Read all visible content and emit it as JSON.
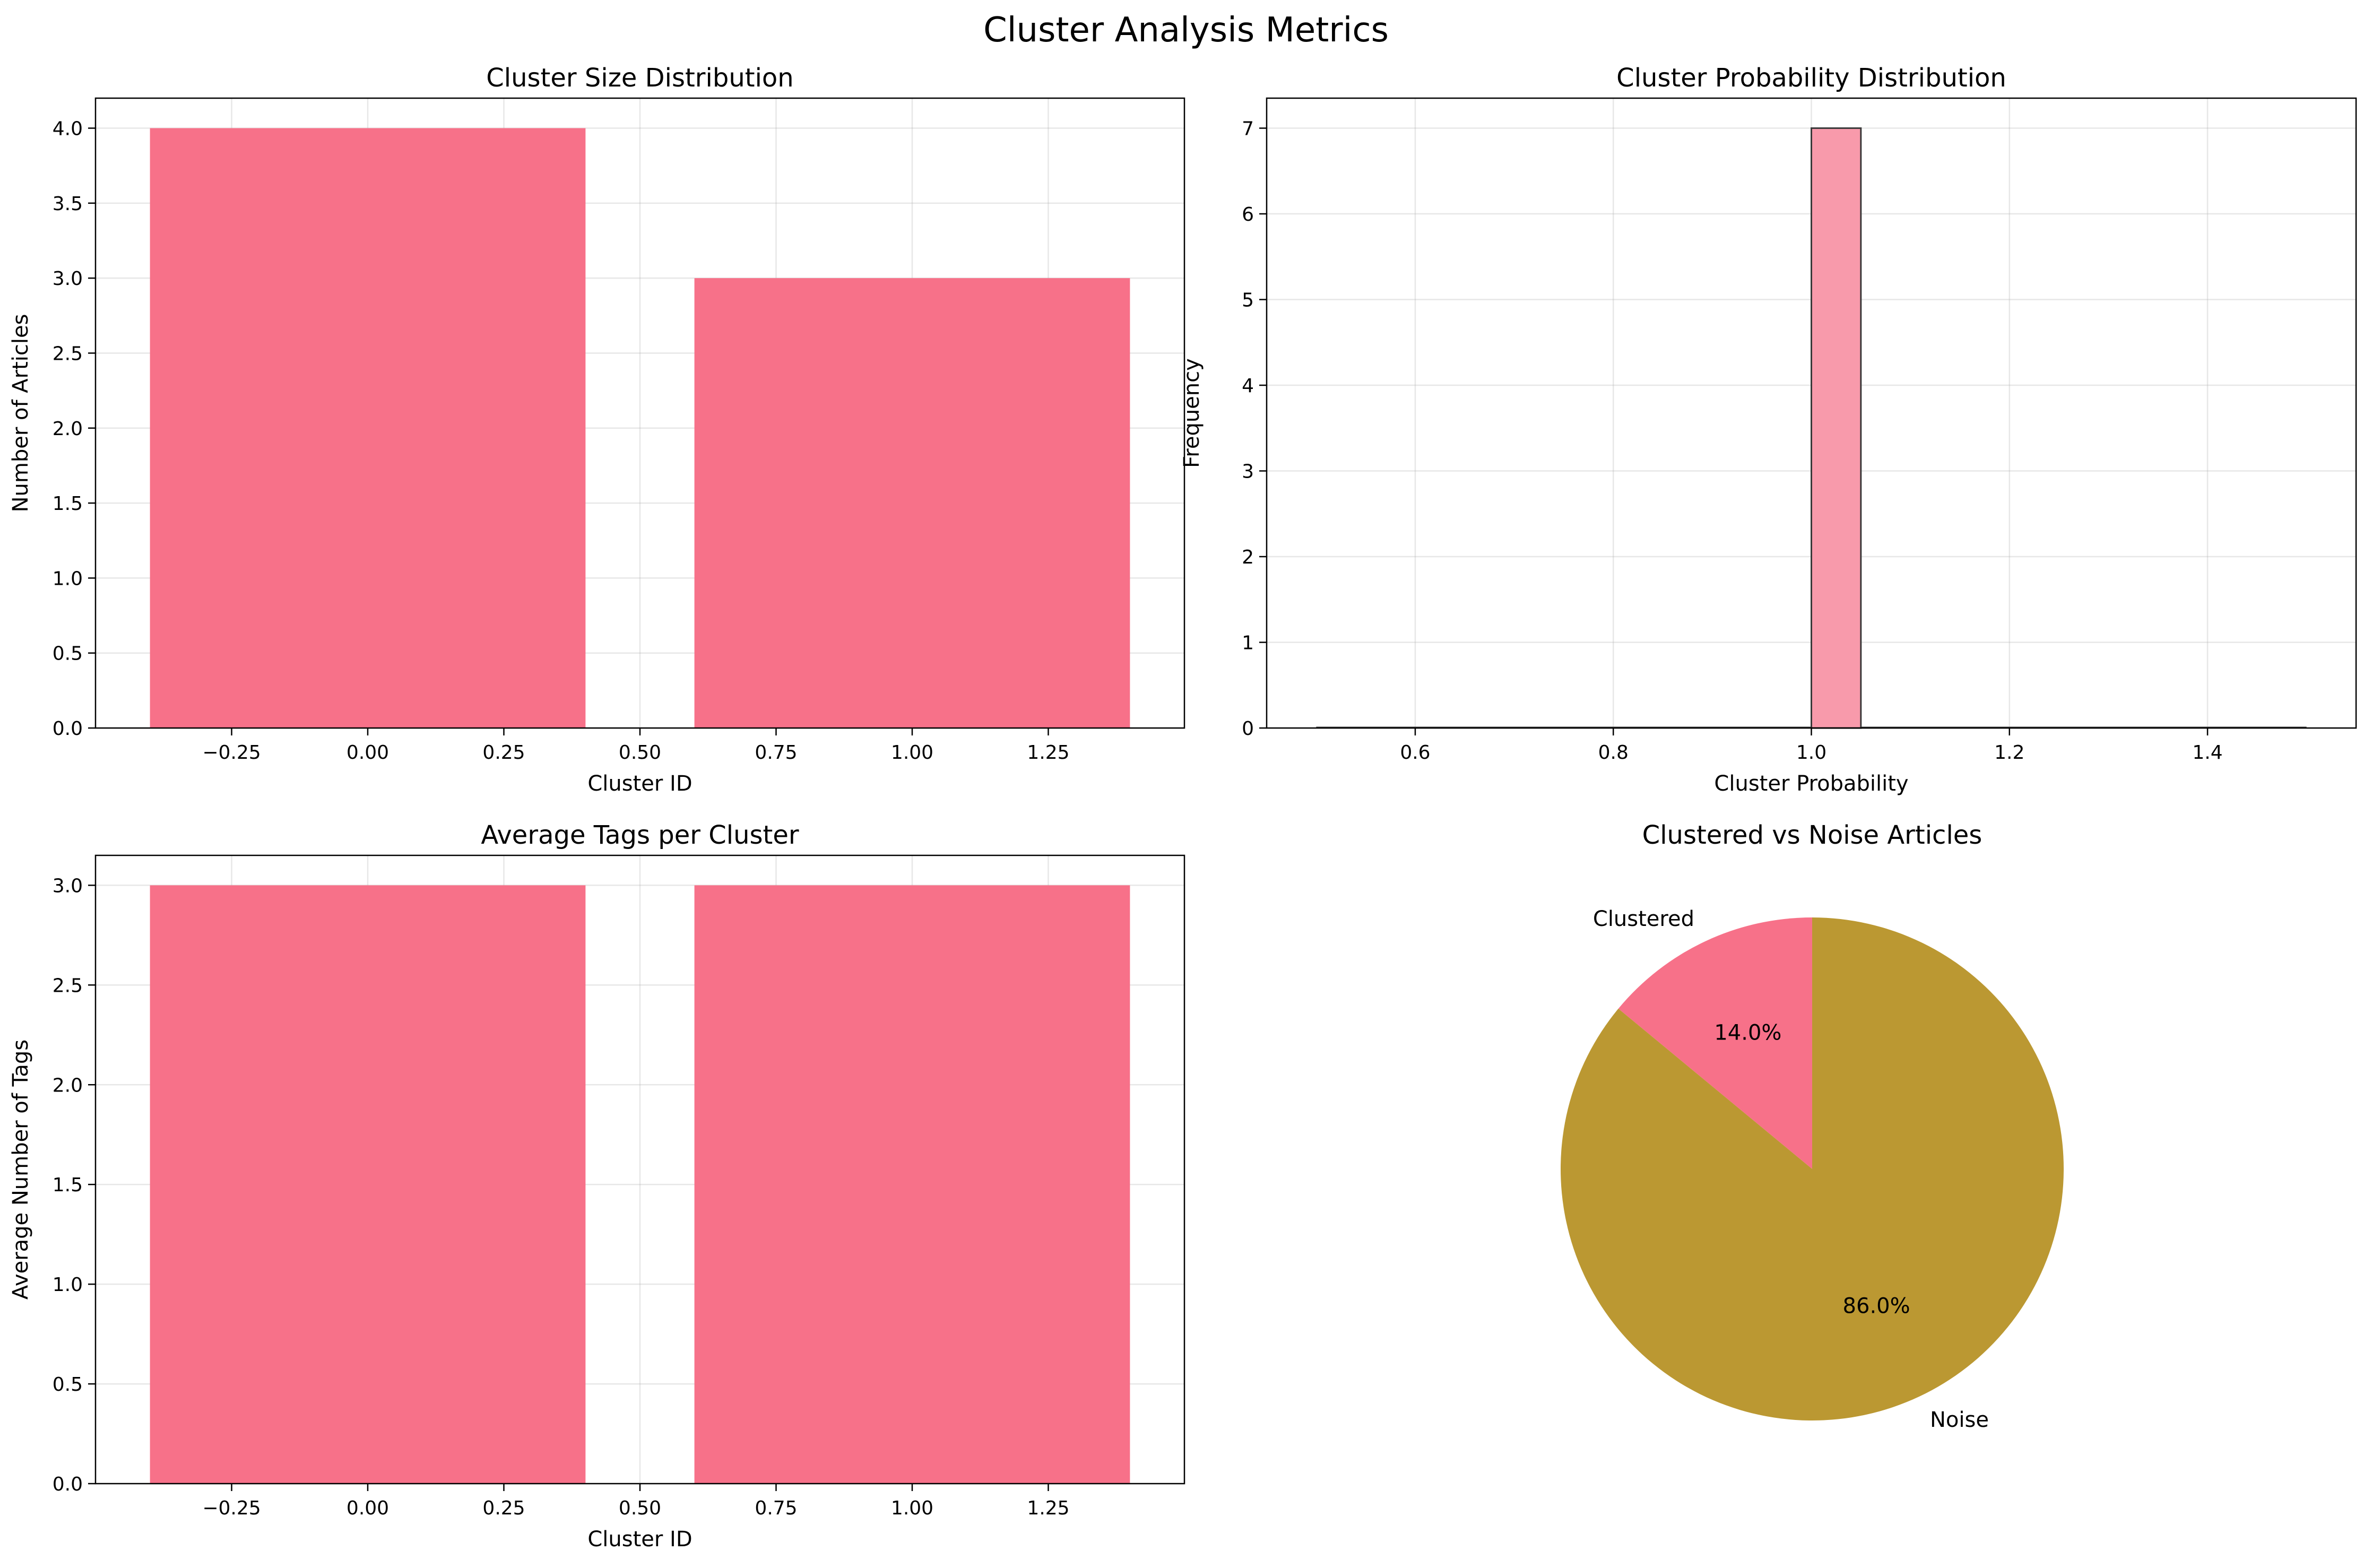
{
  "title": "Cluster Analysis Metrics",
  "chart_data": [
    {
      "type": "bar",
      "title": "Cluster Size Distribution",
      "xlabel": "Cluster ID",
      "ylabel": "Number of Articles",
      "x": [
        0,
        1
      ],
      "values": [
        4,
        3
      ],
      "bar_width": 0.8,
      "xlim": [
        -0.5,
        1.5
      ],
      "ylim": [
        0,
        4.2
      ],
      "xticks": [
        -0.25,
        0.0,
        0.25,
        0.5,
        0.75,
        1.0,
        1.25
      ],
      "xtick_labels": [
        "−0.25",
        "0.00",
        "0.25",
        "0.50",
        "0.75",
        "1.00",
        "1.25"
      ],
      "yticks": [
        0,
        0.5,
        1.0,
        1.5,
        2.0,
        2.5,
        3.0,
        3.5,
        4.0
      ],
      "ytick_labels": [
        "0.0",
        "0.5",
        "1.0",
        "1.5",
        "2.0",
        "2.5",
        "3.0",
        "3.5",
        "4.0"
      ],
      "grid": true,
      "color": "#f77189"
    },
    {
      "type": "bar",
      "subtype": "histogram",
      "title": "Cluster Probability Distribution",
      "xlabel": "Cluster Probability",
      "ylabel": "Frequency",
      "bins": [
        {
          "start": 1.0,
          "end": 1.05,
          "count": 7
        }
      ],
      "xlim": [
        0.45,
        1.55
      ],
      "ylim": [
        0,
        7.35
      ],
      "xticks": [
        0.6,
        0.8,
        1.0,
        1.2,
        1.4
      ],
      "xtick_labels": [
        "0.6",
        "0.8",
        "1.0",
        "1.2",
        "1.4"
      ],
      "yticks": [
        0,
        1,
        2,
        3,
        4,
        5,
        6,
        7
      ],
      "ytick_labels": [
        "0",
        "1",
        "2",
        "3",
        "4",
        "5",
        "6",
        "7"
      ],
      "baseline_range": [
        0.5,
        1.5
      ],
      "grid": true,
      "color": "#f89aab",
      "edge_color": "#3a3a3a"
    },
    {
      "type": "bar",
      "title": "Average Tags per Cluster",
      "xlabel": "Cluster ID",
      "ylabel": "Average Number of Tags",
      "x": [
        0,
        1
      ],
      "values": [
        3,
        3
      ],
      "bar_width": 0.8,
      "xlim": [
        -0.5,
        1.5
      ],
      "ylim": [
        0,
        3.15
      ],
      "xticks": [
        -0.25,
        0.0,
        0.25,
        0.5,
        0.75,
        1.0,
        1.25
      ],
      "xtick_labels": [
        "−0.25",
        "0.00",
        "0.25",
        "0.50",
        "0.75",
        "1.00",
        "1.25"
      ],
      "yticks": [
        0,
        0.5,
        1.0,
        1.5,
        2.0,
        2.5,
        3.0
      ],
      "ytick_labels": [
        "0.0",
        "0.5",
        "1.0",
        "1.5",
        "2.0",
        "2.5",
        "3.0"
      ],
      "grid": true,
      "color": "#f77189"
    },
    {
      "type": "pie",
      "title": "Clustered vs Noise Articles",
      "slices": [
        {
          "label": "Clustered",
          "value": 14.0,
          "pct_label": "14.0%",
          "color": "#f77189"
        },
        {
          "label": "Noise",
          "value": 86.0,
          "pct_label": "86.0%",
          "color": "#bb9832"
        }
      ],
      "start_angle": 90,
      "direction": "counterclockwise"
    }
  ]
}
